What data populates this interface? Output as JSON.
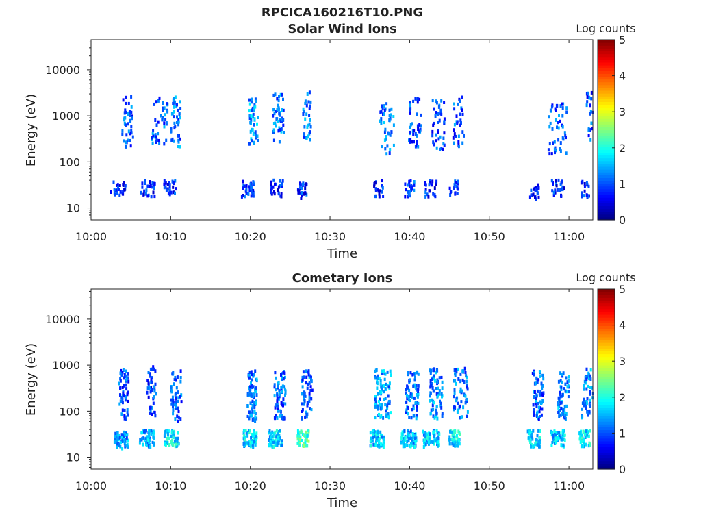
{
  "figure_title": "RPCICA160216T10.PNG",
  "chart_data": [
    {
      "type": "heatmap",
      "title": "Solar Wind Ions",
      "xlabel": "Time",
      "ylabel": "Energy (eV)",
      "x_ticks": [
        "10:00",
        "10:10",
        "10:20",
        "10:30",
        "10:40",
        "10:50",
        "11:00"
      ],
      "x_range_minutes": [
        0,
        63
      ],
      "y_scale": "log",
      "y_range": [
        5.5,
        45000
      ],
      "y_ticks": [
        10,
        100,
        1000,
        10000
      ],
      "y_tick_labels": [
        "10",
        "100",
        "1000",
        "10000"
      ],
      "colorbar": {
        "label": "Log counts",
        "range": [
          0,
          5
        ],
        "ticks": [
          "0",
          "1",
          "2",
          "3",
          "4",
          "5"
        ],
        "colormap": "jet"
      },
      "clusters": [
        {
          "t": 3.3,
          "dt": 1.8,
          "e": 25,
          "lc": 0.8,
          "n": 9
        },
        {
          "t": 4.5,
          "dt": 1.4,
          "e": 700,
          "lc": 1.0,
          "n": 14
        },
        {
          "t": 7.0,
          "dt": 1.8,
          "e": 25,
          "lc": 0.8,
          "n": 9
        },
        {
          "t": 8.5,
          "dt": 2.0,
          "e": 800,
          "lc": 1.1,
          "n": 14
        },
        {
          "t": 9.8,
          "dt": 1.5,
          "e": 25,
          "lc": 0.8,
          "n": 8
        },
        {
          "t": 10.5,
          "dt": 1.2,
          "e": 700,
          "lc": 1.2,
          "n": 14
        },
        {
          "t": 19.6,
          "dt": 1.6,
          "e": 25,
          "lc": 0.8,
          "n": 10
        },
        {
          "t": 20.3,
          "dt": 1.2,
          "e": 800,
          "lc": 1.4,
          "n": 14
        },
        {
          "t": 23.2,
          "dt": 1.6,
          "e": 25,
          "lc": 0.8,
          "n": 9
        },
        {
          "t": 23.4,
          "dt": 1.4,
          "e": 900,
          "lc": 1.2,
          "n": 16
        },
        {
          "t": 26.4,
          "dt": 1.2,
          "e": 22,
          "lc": 0.8,
          "n": 10
        },
        {
          "t": 27.0,
          "dt": 1.0,
          "e": 1000,
          "lc": 1.2,
          "n": 10
        },
        {
          "t": 36.0,
          "dt": 1.2,
          "e": 25,
          "lc": 0.8,
          "n": 7
        },
        {
          "t": 37.0,
          "dt": 1.8,
          "e": 500,
          "lc": 1.2,
          "n": 14
        },
        {
          "t": 40.0,
          "dt": 1.4,
          "e": 25,
          "lc": 0.9,
          "n": 8
        },
        {
          "t": 40.5,
          "dt": 1.6,
          "e": 700,
          "lc": 1.0,
          "n": 14
        },
        {
          "t": 42.5,
          "dt": 1.6,
          "e": 25,
          "lc": 0.8,
          "n": 7
        },
        {
          "t": 43.5,
          "dt": 1.6,
          "e": 600,
          "lc": 1.0,
          "n": 14
        },
        {
          "t": 45.5,
          "dt": 1.2,
          "e": 25,
          "lc": 0.8,
          "n": 6
        },
        {
          "t": 46.0,
          "dt": 1.4,
          "e": 700,
          "lc": 1.0,
          "n": 10
        },
        {
          "t": 55.6,
          "dt": 1.2,
          "e": 22,
          "lc": 0.8,
          "n": 7
        },
        {
          "t": 58.5,
          "dt": 1.6,
          "e": 25,
          "lc": 0.8,
          "n": 9
        },
        {
          "t": 58.5,
          "dt": 2.4,
          "e": 500,
          "lc": 1.0,
          "n": 16
        },
        {
          "t": 61.9,
          "dt": 1.0,
          "e": 24,
          "lc": 0.8,
          "n": 6
        },
        {
          "t": 62.5,
          "dt": 0.8,
          "e": 900,
          "lc": 1.0,
          "n": 7
        }
      ]
    },
    {
      "type": "heatmap",
      "title": "Cometary Ions",
      "xlabel": "Time",
      "ylabel": "Energy (eV)",
      "x_ticks": [
        "10:00",
        "10:10",
        "10:20",
        "10:30",
        "10:40",
        "10:50",
        "11:00"
      ],
      "x_range_minutes": [
        0,
        63
      ],
      "y_scale": "log",
      "y_range": [
        5.5,
        45000
      ],
      "y_ticks": [
        10,
        100,
        1000,
        10000
      ],
      "y_tick_labels": [
        "10",
        "100",
        "1000",
        "10000"
      ],
      "colorbar": {
        "label": "Log counts",
        "range": [
          0,
          5
        ],
        "ticks": [
          "0",
          "1",
          "2",
          "3",
          "4",
          "5"
        ],
        "colormap": "jet"
      },
      "clusters": [
        {
          "t": 3.6,
          "dt": 1.8,
          "e": 22,
          "lc": 1.4,
          "n": 20
        },
        {
          "t": 4.0,
          "dt": 1.2,
          "e": 220,
          "lc": 1.0,
          "n": 18
        },
        {
          "t": 6.9,
          "dt": 1.8,
          "e": 24,
          "lc": 1.5,
          "n": 18
        },
        {
          "t": 7.5,
          "dt": 1.2,
          "e": 250,
          "lc": 0.9,
          "n": 14
        },
        {
          "t": 10.0,
          "dt": 1.8,
          "e": 24,
          "lc": 1.8,
          "n": 20
        },
        {
          "t": 10.6,
          "dt": 1.4,
          "e": 200,
          "lc": 1.0,
          "n": 16
        },
        {
          "t": 19.8,
          "dt": 1.8,
          "e": 24,
          "lc": 1.7,
          "n": 22
        },
        {
          "t": 20.1,
          "dt": 1.2,
          "e": 200,
          "lc": 1.2,
          "n": 24
        },
        {
          "t": 23.0,
          "dt": 1.8,
          "e": 24,
          "lc": 1.7,
          "n": 20
        },
        {
          "t": 23.6,
          "dt": 1.4,
          "e": 220,
          "lc": 1.1,
          "n": 24
        },
        {
          "t": 26.5,
          "dt": 1.4,
          "e": 24,
          "lc": 2.2,
          "n": 16
        },
        {
          "t": 27.0,
          "dt": 1.4,
          "e": 230,
          "lc": 1.1,
          "n": 18
        },
        {
          "t": 35.8,
          "dt": 1.8,
          "e": 24,
          "lc": 1.6,
          "n": 20
        },
        {
          "t": 36.5,
          "dt": 2.0,
          "e": 220,
          "lc": 1.4,
          "n": 28
        },
        {
          "t": 39.8,
          "dt": 2.0,
          "e": 24,
          "lc": 1.5,
          "n": 20
        },
        {
          "t": 40.2,
          "dt": 1.6,
          "e": 220,
          "lc": 1.2,
          "n": 24
        },
        {
          "t": 42.6,
          "dt": 2.0,
          "e": 24,
          "lc": 1.6,
          "n": 20
        },
        {
          "t": 43.2,
          "dt": 1.6,
          "e": 230,
          "lc": 1.3,
          "n": 24
        },
        {
          "t": 45.5,
          "dt": 1.4,
          "e": 24,
          "lc": 1.8,
          "n": 16
        },
        {
          "t": 46.3,
          "dt": 1.8,
          "e": 230,
          "lc": 1.2,
          "n": 20
        },
        {
          "t": 55.5,
          "dt": 1.6,
          "e": 24,
          "lc": 1.7,
          "n": 18
        },
        {
          "t": 56.0,
          "dt": 1.4,
          "e": 220,
          "lc": 1.1,
          "n": 20
        },
        {
          "t": 58.5,
          "dt": 1.8,
          "e": 24,
          "lc": 1.6,
          "n": 18
        },
        {
          "t": 59.2,
          "dt": 1.4,
          "e": 230,
          "lc": 1.3,
          "n": 20
        },
        {
          "t": 61.9,
          "dt": 1.4,
          "e": 24,
          "lc": 1.8,
          "n": 14
        },
        {
          "t": 62.2,
          "dt": 1.4,
          "e": 230,
          "lc": 1.3,
          "n": 18
        }
      ]
    }
  ]
}
